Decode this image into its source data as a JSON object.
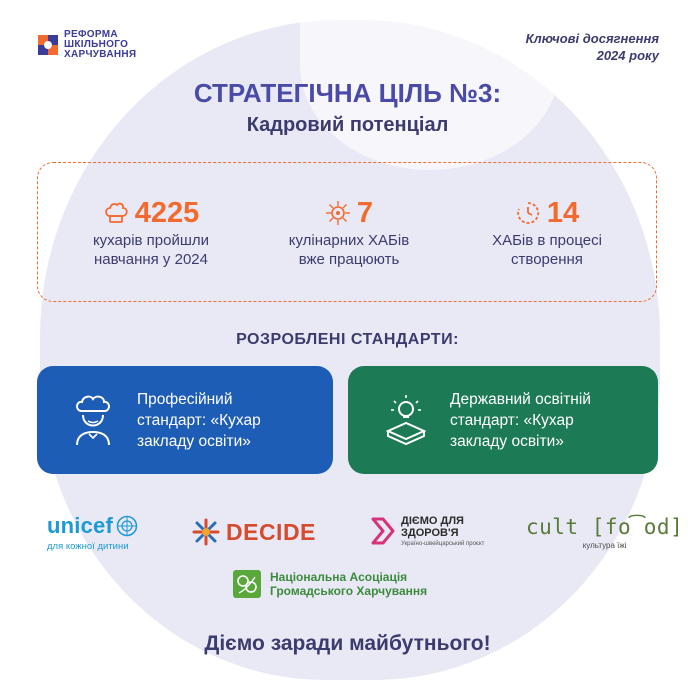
{
  "header": {
    "logo_line1": "РЕФОРМА",
    "logo_line2": "ШКІЛЬНОГО",
    "logo_line3": "ХАРЧУВАННЯ",
    "report_line1": "Ключові досягнення",
    "report_line2": "2024 року"
  },
  "title": "СТРАТЕГІЧНА ЦІЛЬ №3:",
  "subtitle": "Кадровий потенціал",
  "stats": [
    {
      "icon": "chef-hat-icon",
      "value": "4225",
      "line1": "кухарів пройшли",
      "line2": "навчання у 2024"
    },
    {
      "icon": "hub-network-icon",
      "value": "7",
      "line1": "кулінарних ХАБів",
      "line2": "вже працюють"
    },
    {
      "icon": "clock-progress-icon",
      "value": "14",
      "line1": "ХАБів в процесі",
      "line2": "створення"
    }
  ],
  "standards_label": "РОЗРОБЛЕНІ СТАНДАРТИ:",
  "cards": [
    {
      "icon": "chef-icon",
      "line1": "Професійний",
      "line2": "стандарт: «Кухар",
      "line3": "закладу освіти»",
      "color": "#1e5db6"
    },
    {
      "icon": "lightbulb-book-icon",
      "line1": "Державний освітній",
      "line2": "стандарт:  «Кухар",
      "line3": "закладу освіти»",
      "color": "#1c7a54"
    }
  ],
  "partners": {
    "unicef": {
      "name": "unicef",
      "tagline": "для кожної дитини"
    },
    "decide": {
      "name": "DECIDE"
    },
    "diemo": {
      "line1": "ДІЄМО ДЛЯ",
      "line2": "ЗДОРОВ'Я",
      "tagline": "Україно-швейцарський проєкт"
    },
    "cult": {
      "name": "cult [fo͡od]",
      "tagline": "культура їжі"
    },
    "naph": {
      "line1": "Національна Асоціація",
      "line2": "Громадського Харчування"
    }
  },
  "footer": "Діємо заради майбутнього!",
  "colors": {
    "accent": "#f26a2e",
    "primary": "#3b3b6e",
    "title": "#4a4aa8"
  }
}
